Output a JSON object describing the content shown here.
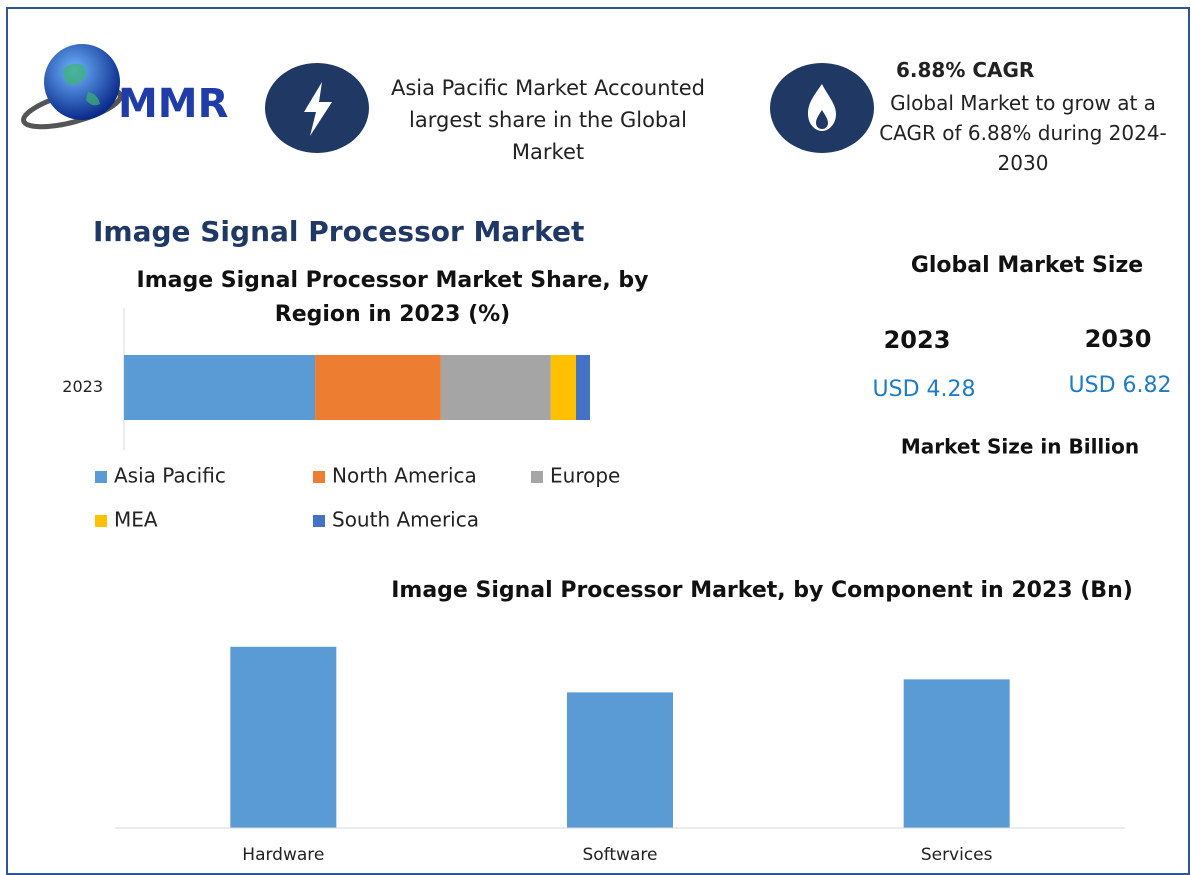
{
  "header": {
    "logo": "MMR",
    "highlight": "Asia Pacific Market Accounted largest share in the Global Market",
    "cagr_title": "6.88% CAGR",
    "cagr_text": "Global Market to grow at a CAGR of 6.88% during 2024-2030"
  },
  "title": "Image Signal Processor Market",
  "market_size": {
    "title": "Global Market Size",
    "years": [
      "2023",
      "2030"
    ],
    "values": [
      "USD 4.28",
      "USD 6.82"
    ],
    "note": "Market Size in Billion"
  },
  "chart_data": [
    {
      "type": "barh",
      "title": "Image Signal Processor Market Share, by Region in 2023 (%)",
      "categories": [
        "2023"
      ],
      "xlim": [
        0,
        100
      ],
      "series": [
        {
          "name": "Asia Pacific",
          "color": "#5b9bd5",
          "values": [
            41
          ]
        },
        {
          "name": "North America",
          "color": "#ed7d31",
          "values": [
            27
          ]
        },
        {
          "name": "Europe",
          "color": "#a5a5a5",
          "values": [
            23.6
          ]
        },
        {
          "name": "MEA",
          "color": "#ffc000",
          "values": [
            5.4
          ]
        },
        {
          "name": "South America",
          "color": "#4472c4",
          "values": [
            3
          ]
        }
      ]
    },
    {
      "type": "bar",
      "title": "Image Signal Processor Market, by Component in 2023 (Bn)",
      "categories": [
        "Hardware",
        "Software",
        "Services"
      ],
      "values": [
        1.67,
        1.25,
        1.37
      ],
      "color": "#5b9bd5",
      "ylim": [
        0,
        2
      ]
    }
  ]
}
